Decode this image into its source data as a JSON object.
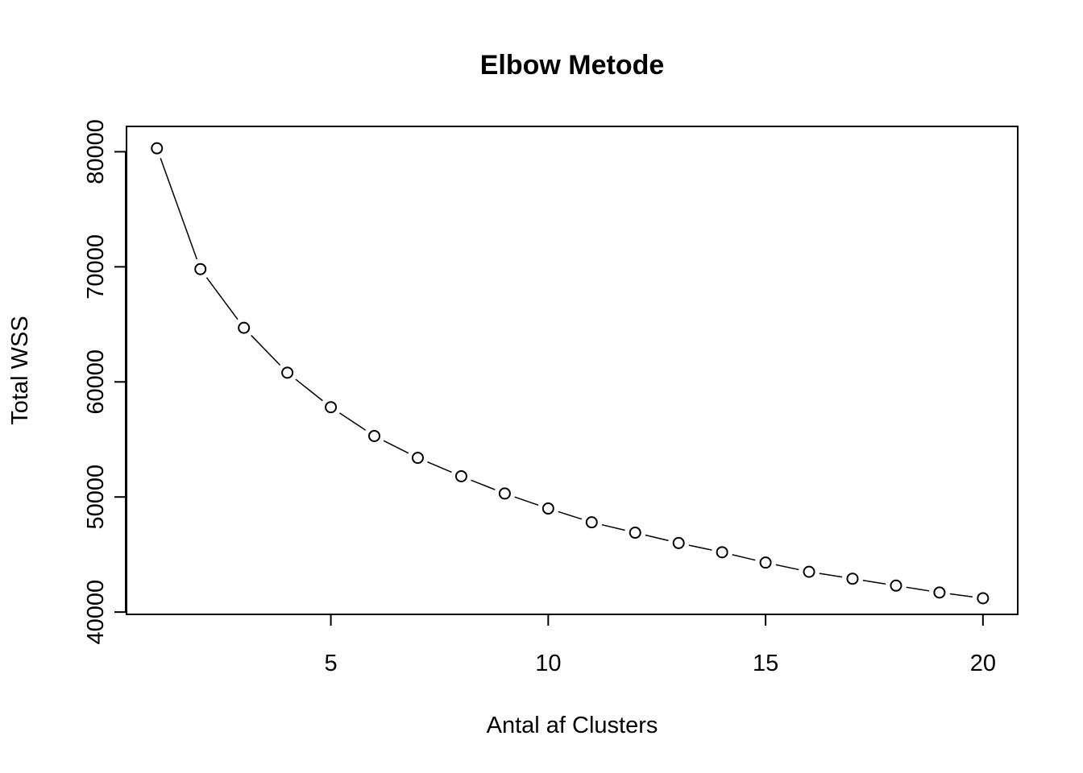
{
  "chart_data": {
    "type": "line",
    "title": "Elbow Metode",
    "xlabel": "Antal af Clusters",
    "ylabel": "Total WSS",
    "x": [
      1,
      2,
      3,
      4,
      5,
      6,
      7,
      8,
      9,
      10,
      11,
      12,
      13,
      14,
      15,
      16,
      17,
      18,
      19,
      20
    ],
    "series": [
      {
        "values": [
          80300,
          69800,
          64700,
          60800,
          57800,
          55300,
          53400,
          51800,
          50300,
          49000,
          47800,
          46900,
          46000,
          45200,
          44300,
          43500,
          42900,
          42300,
          41700,
          41200
        ]
      }
    ],
    "xlim": [
      0.3,
      20.8
    ],
    "ylim": [
      39800,
      82200
    ],
    "xticks": [
      5,
      10,
      15,
      20
    ],
    "yticks": [
      40000,
      50000,
      60000,
      70000,
      80000
    ],
    "marker": "open-circle",
    "line_style": "dashed",
    "grid": false,
    "legend": "none",
    "colors": {
      "line": "#000000",
      "marker_fill": "#ffffff",
      "marker_stroke": "#000000"
    }
  }
}
